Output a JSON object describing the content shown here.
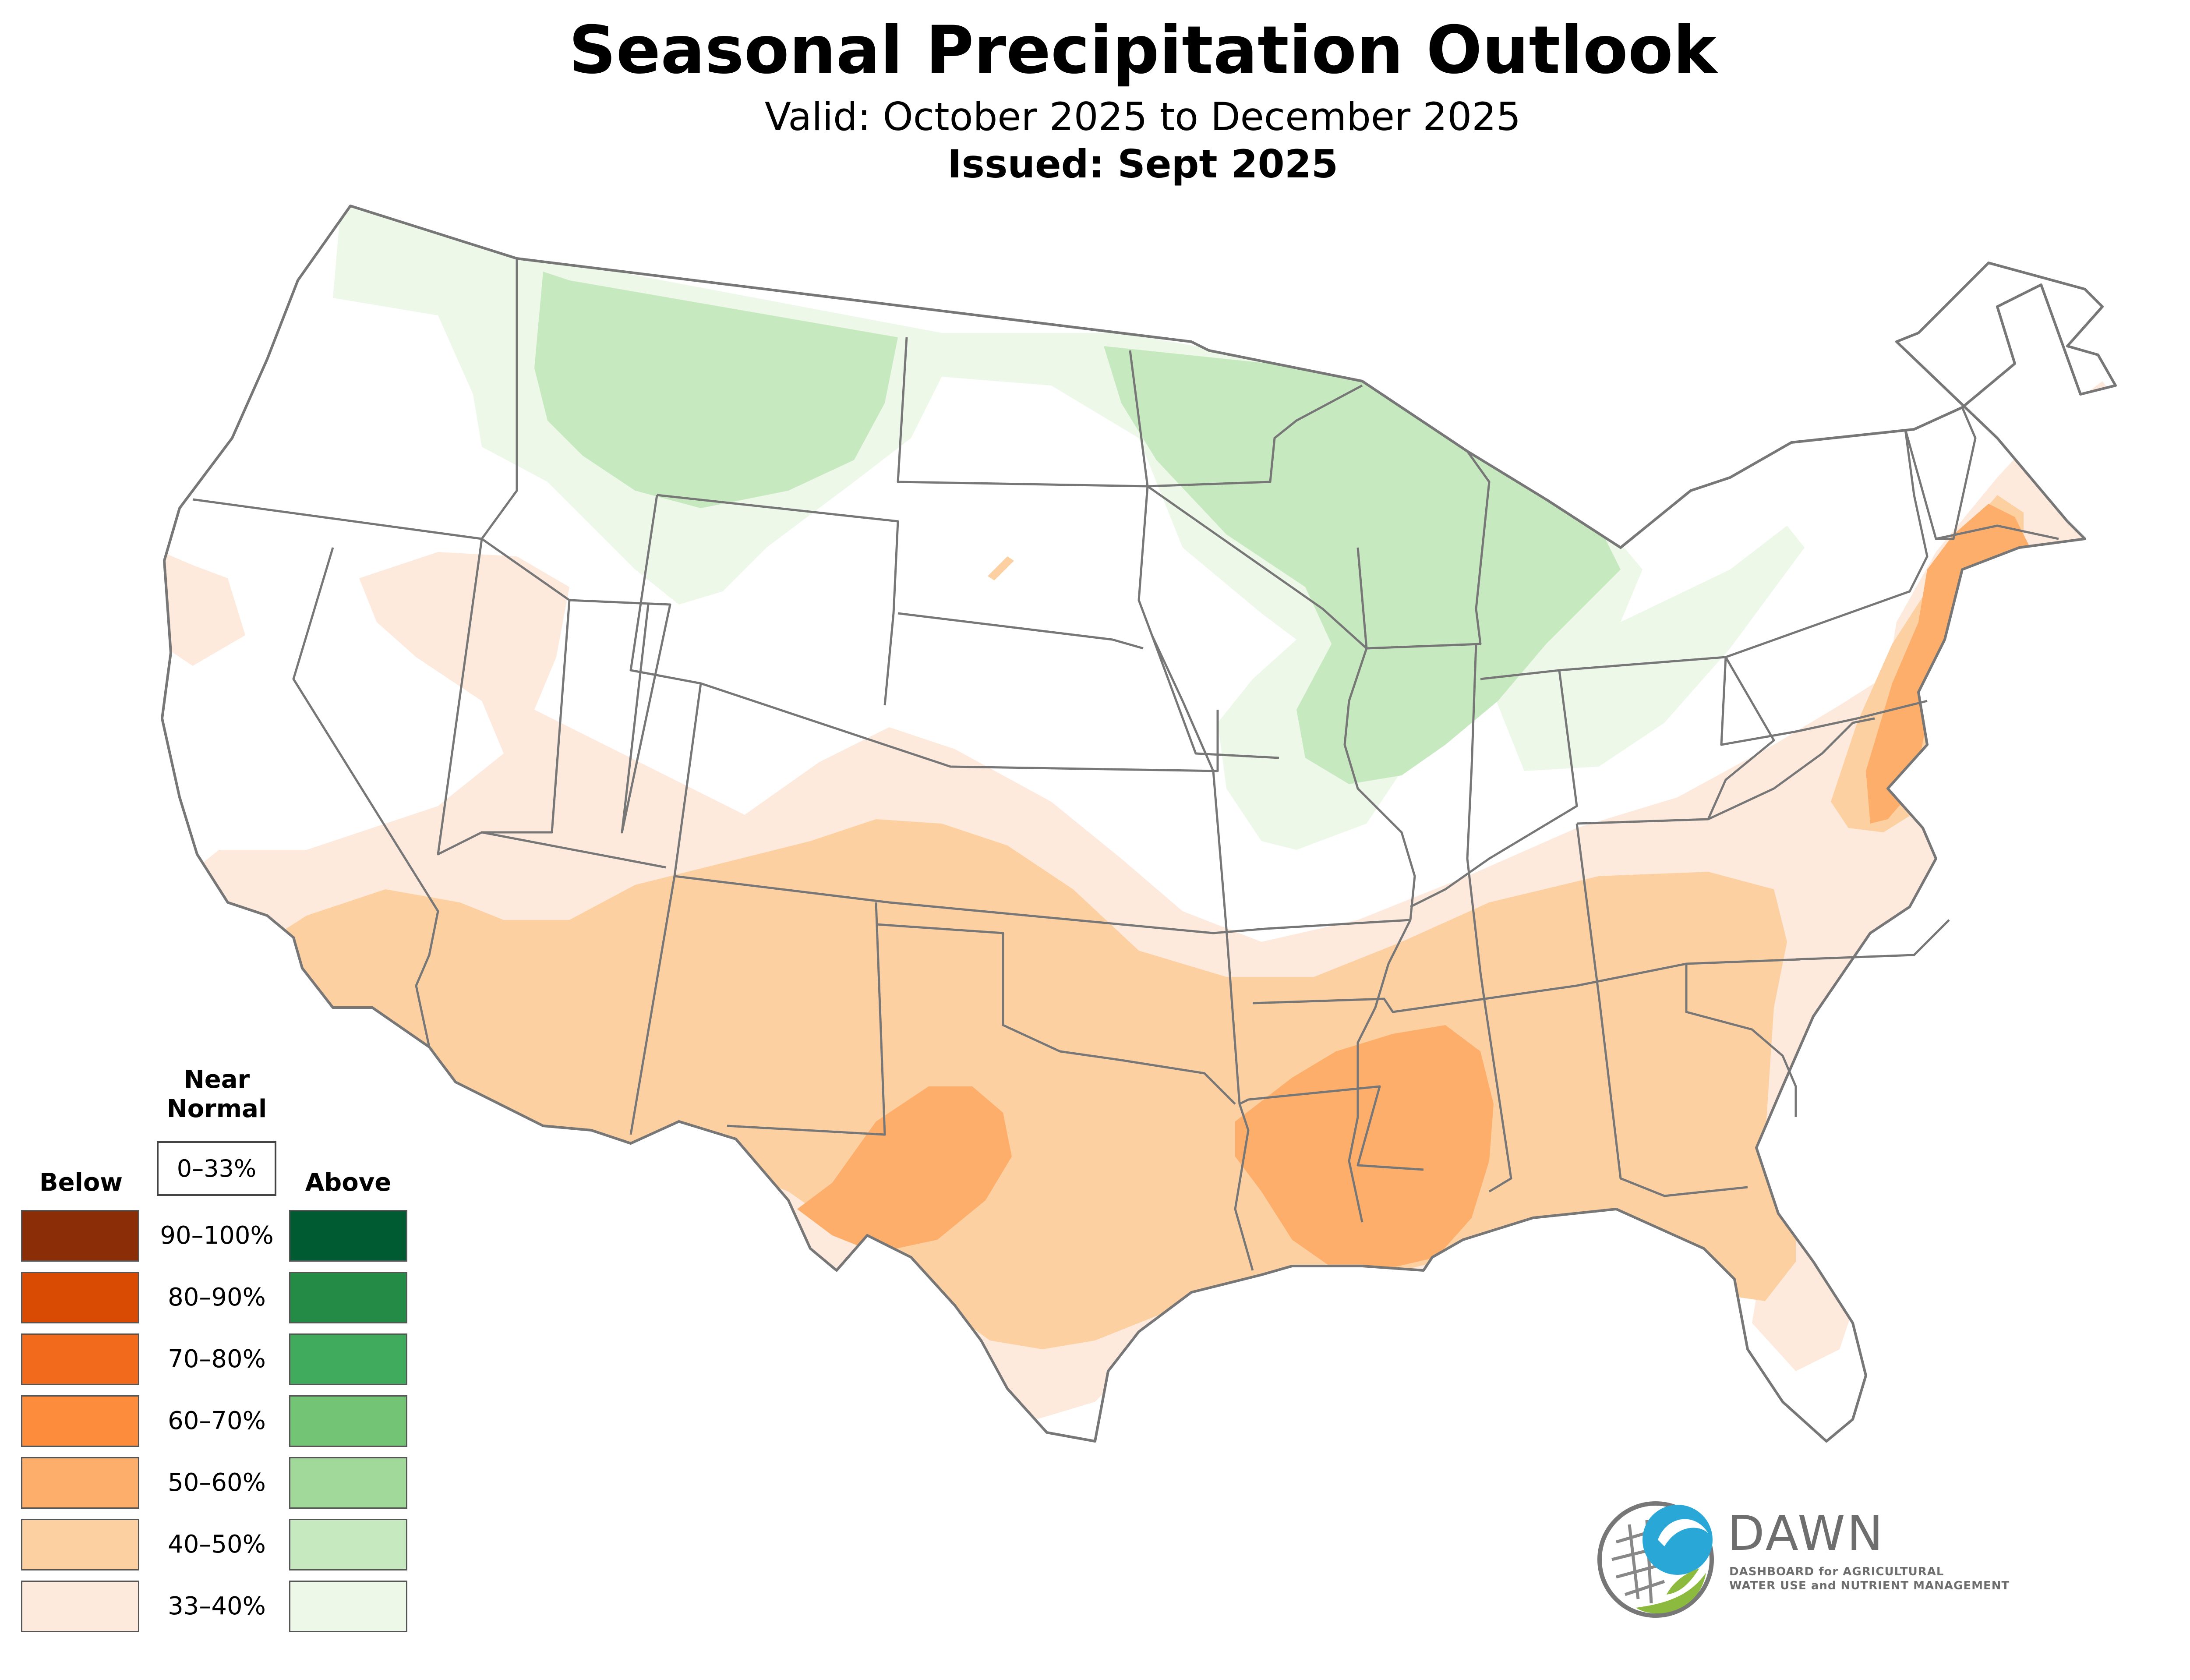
{
  "title": "Seasonal Precipitation Outlook",
  "valid": "Valid: October 2025 to December 2025",
  "issued": "Issued: Sept 2025",
  "legend": {
    "below_label": "Below",
    "above_label": "Above",
    "near_normal_label_1": "Near",
    "near_normal_label_2": "Normal",
    "near_normal_range": "0–33%",
    "ranges": [
      "90–100%",
      "80–90%",
      "70–80%",
      "60–70%",
      "50–60%",
      "40–50%",
      "33–40%"
    ],
    "below_colors": [
      "#8b2d07",
      "#d94a03",
      "#f26b1d",
      "#fd8d3c",
      "#fdae6b",
      "#fdd0a2",
      "#feeadc"
    ],
    "above_colors": [
      "#005a32",
      "#238b45",
      "#41ab5d",
      "#74c476",
      "#a1d99b",
      "#c7e9c0",
      "#edf8e9"
    ]
  },
  "logo": {
    "name": "DAWN",
    "line1": "DASHBOARD for AGRICULTURAL",
    "line2": "WATER USE and NUTRIENT MANAGEMENT",
    "colors": {
      "blue": "#29a8d8",
      "green": "#8cba3f",
      "gray": "#777777"
    }
  },
  "map": {
    "state_border_color": "#777777",
    "regions": [
      {
        "category": "above",
        "range": "33–40%",
        "area": "Pacific Northwest to Northern Plains"
      },
      {
        "category": "above",
        "range": "40–50%",
        "area": "Montana"
      },
      {
        "category": "above",
        "range": "40–50%",
        "area": "Upper Midwest / Great Lakes"
      },
      {
        "category": "above",
        "range": "33–40%",
        "area": "Ohio Valley"
      },
      {
        "category": "below",
        "range": "33–40%",
        "area": "Southwest to Mid-Atlantic"
      },
      {
        "category": "below",
        "range": "40–50%",
        "area": "Southern tier"
      },
      {
        "category": "below",
        "range": "50–60%",
        "area": "Western Texas"
      },
      {
        "category": "below",
        "range": "50–60%",
        "area": "Lower Mississippi Valley"
      },
      {
        "category": "below",
        "range": "50–60%",
        "area": "Northeast coast"
      }
    ]
  }
}
